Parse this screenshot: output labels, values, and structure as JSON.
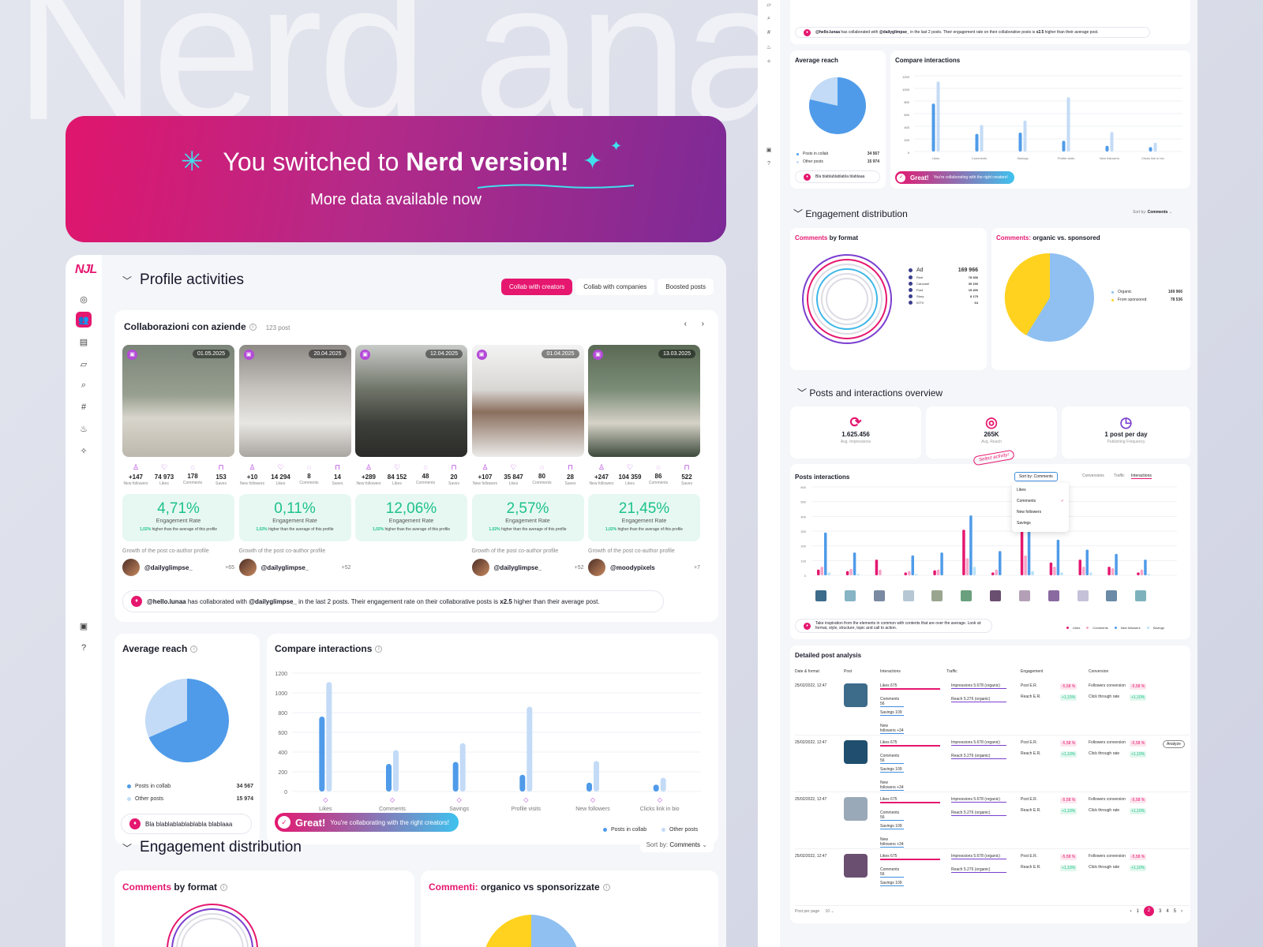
{
  "bg_word": "Nerd analytics",
  "banner": {
    "title_pre": "You switched to ",
    "title_bold": "Nerd version!",
    "subtitle": "More data available now"
  },
  "logo": {
    "text": "NJL"
  },
  "profile": {
    "title": "Profile activities",
    "tabs": [
      "Collab with creators",
      "Collab with companies",
      "Boosted posts"
    ]
  },
  "collab": {
    "title": "Collaborazioni con aziende",
    "count": "123 post",
    "posts": [
      {
        "date": "01.05.2025",
        "stats": [
          "+147",
          "74 973",
          "178",
          "153"
        ],
        "er": "4,71%",
        "author": "@dailyglimpse_",
        "plus": "+65",
        "bg": "linear-gradient(180deg,#7a8478 0%,#98a090 45%,#d8d5cc 65%,#bdb8ae 100%)"
      },
      {
        "date": "20.04.2025",
        "stats": [
          "+10",
          "14 294",
          "8",
          "14"
        ],
        "er": "0,11%",
        "author": "@dailyglimpse_",
        "plus": "+52",
        "bg": "linear-gradient(180deg,#8d8985 0%,#c7c4bf 40%,#e8e6e2 70%,#a9a5a0 100%)"
      },
      {
        "date": "12.04.2025",
        "stats": [
          "+289",
          "84 152",
          "48",
          "20"
        ],
        "er": "12,06%",
        "author": "",
        "plus": "",
        "bg": "linear-gradient(180deg,#c9ccc9 0%,#6f7468 40%,#3d3f3a 70%,#2b2c29 100%)"
      },
      {
        "date": "01.04.2025",
        "stats": [
          "+107",
          "35 847",
          "80",
          "28"
        ],
        "er": "2,57%",
        "author": "@dailyglimpse_",
        "plus": "+52",
        "bg": "linear-gradient(180deg,#f3f3f3 0%,#d9d7d4 40%,#8a6f5e 60%,#ecebe9 100%)"
      },
      {
        "date": "13.03.2025",
        "stats": [
          "+247",
          "104 359",
          "86",
          "522"
        ],
        "er": "21,45%",
        "author": "@moodypixels",
        "plus": "+7",
        "bg": "linear-gradient(180deg,#5a6a55 0%,#7b8c77 40%,#d6d2c8 70%,#3c4a3b 100%)"
      }
    ],
    "stat_labels": [
      "New followers",
      "Likes",
      "Comments",
      "Saves"
    ],
    "er_label": "Engagement Rate",
    "er_note_pct": "1,02%",
    "er_note": " higher than the average of this profile",
    "growth_label": "Growth of the post co-author profile",
    "insight_user": "@hello.lunaa",
    "insight_mid": " has collaborated with ",
    "insight_collab": "@dailyglimpse_",
    "insight_rest": " in the last 2 posts. Their engagement rate on their collaborative posts is ",
    "insight_mult": "x2.5",
    "insight_end": " higher than their average post."
  },
  "avg_reach": {
    "title": "Average reach",
    "legend": [
      {
        "label": "Posts in collab",
        "value": "34 567",
        "color": "#4f9be9"
      },
      {
        "label": "Other posts",
        "value": "15 974",
        "color": "#c3dbf6"
      }
    ],
    "pill": "Bla blablablablablabla blablaaa"
  },
  "compare": {
    "title": "Compare interactions",
    "great": "Great!",
    "great_msg": "You're collaborating with the right creators!",
    "legend": [
      "Posts in collab",
      "Other posts"
    ]
  },
  "chart_data": [
    {
      "type": "pie",
      "title": "Average reach",
      "categories": [
        "Posts in collab",
        "Other posts"
      ],
      "values": [
        34567,
        15974
      ],
      "colors": [
        "#4f9be9",
        "#c3dbf6"
      ]
    },
    {
      "type": "bar",
      "title": "Compare interactions",
      "categories": [
        "Likes",
        "Comments",
        "Savings",
        "Profile visits",
        "New followers",
        "Clicks link in bio"
      ],
      "series": [
        {
          "name": "Posts in collab",
          "values": [
            760,
            280,
            300,
            170,
            90,
            70
          ]
        },
        {
          "name": "Other posts",
          "values": [
            1110,
            420,
            490,
            860,
            310,
            140
          ]
        }
      ],
      "ylim": [
        0,
        1200
      ],
      "yticks": [
        "1200",
        "1000",
        "800",
        "600",
        "400",
        "200",
        "0"
      ]
    }
  ],
  "engagement": {
    "title": "Engagement distribution",
    "sort_label": "Sort by: ",
    "sort_value": "Comments",
    "c1_pink": "Comments",
    "c1_rest": " by format",
    "c2_pink": "Commenti:",
    "c2_rest": " organico vs sponsorizzate"
  },
  "right": {
    "avg_reach": "Average reach",
    "compare": "Compare interactions",
    "great": "Great!",
    "great_msg": "You're collaborating with the right creators!",
    "reach_pill": "Bla blablablablabla blablaaa",
    "eng_title": "Engagement distribution",
    "sort": "Sort by: ",
    "sort_value": "Comments",
    "cbf": "Comments",
    "cbf_rest": " by format",
    "formats": [
      {
        "label": "Ad",
        "value": "169 966"
      },
      {
        "label": "Reel",
        "value": "78 536"
      },
      {
        "label": "Carousel",
        "value": "39 150"
      },
      {
        "label": "Post",
        "value": "15 400"
      },
      {
        "label": "Story",
        "value": "8 175"
      },
      {
        "label": "IGTV",
        "value": "64"
      }
    ],
    "org_title_pink": "Comments:",
    "org_title_rest": " organic vs. sponsored",
    "org_legend": [
      {
        "label": "Organic",
        "value": "169 966"
      },
      {
        "label": "From sponsored",
        "value": "78 536"
      }
    ],
    "overview": "Posts and interactions overview",
    "metrics": [
      {
        "value": "1.625.456",
        "label": "Avg. Impressions"
      },
      {
        "value": "265K",
        "label": "Avg. Reach"
      },
      {
        "value": "1 post per day",
        "label": "Publishing Frequency"
      }
    ],
    "pi_title": "Posts interactions",
    "pi_sort": "Sort by: Comments",
    "pi_tabs": [
      "Conversions",
      "Traffic",
      "Interactions"
    ],
    "dropdown": [
      "Likes",
      "Comments",
      "New followers",
      "Savings"
    ],
    "annotation": "Select activity!",
    "pi_tip": "Take inspiration from the elements in common with contents that are over the average. Look at: format, style, structure, topic and call to action.",
    "pi_legend": [
      "Likes",
      "Comments",
      "New followers",
      "Savings"
    ],
    "detail_title": "Detailed post analysis",
    "cols": [
      "Date & format",
      "Post",
      "Interactions",
      "Traffic",
      "Engagement",
      "Conversion"
    ],
    "row_date": "25/02/2022, 12:47",
    "rows_i": [
      "Likes 675",
      "Comments 56",
      "Savings 109",
      "New followers +34"
    ],
    "rows_t": [
      "Impressions 5.678 (organic)",
      "Reach 5.276 (organic)"
    ],
    "rows_e": [
      "Post E.R.",
      "Reach E.R."
    ],
    "rows_c": [
      "Followers conversion",
      "Click through rate"
    ],
    "neg": "-5,58 %",
    "pos": "+1,10%",
    "analyze": "Analyze",
    "per_page": "Post per page",
    "per_page_val": "10",
    "pages": [
      "1",
      "2",
      "3",
      "4",
      "5"
    ]
  }
}
